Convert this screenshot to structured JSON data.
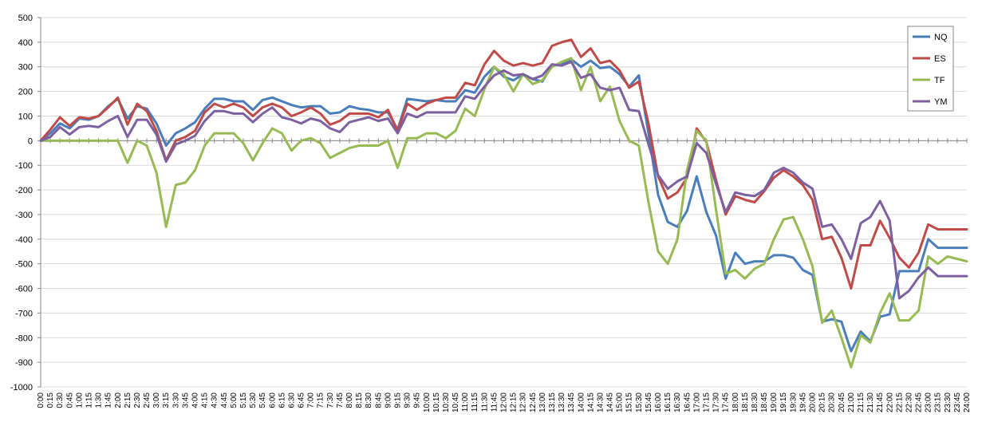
{
  "chart_data": {
    "type": "line",
    "title": "",
    "xlabel": "",
    "ylabel": "",
    "ylim": [
      -1000,
      500
    ],
    "yticks": [
      500,
      400,
      300,
      200,
      100,
      0,
      -100,
      -200,
      -300,
      -400,
      -500,
      -600,
      -700,
      -800,
      -900,
      -1000
    ],
    "grid": "horizontal",
    "legend_position": "top-right",
    "categories": [
      "0:00",
      "0:15",
      "0:30",
      "0:45",
      "1:00",
      "1:15",
      "1:30",
      "1:45",
      "2:00",
      "2:15",
      "2:30",
      "2:45",
      "3:00",
      "3:15",
      "3:30",
      "3:45",
      "4:00",
      "4:15",
      "4:30",
      "4:45",
      "5:00",
      "5:15",
      "5:30",
      "5:45",
      "6:00",
      "6:15",
      "6:30",
      "6:45",
      "7:00",
      "7:15",
      "7:30",
      "7:45",
      "8:00",
      "8:15",
      "8:30",
      "8:45",
      "9:00",
      "9:15",
      "9:30",
      "9:45",
      "10:00",
      "10:15",
      "10:30",
      "10:45",
      "11:00",
      "11:15",
      "11:30",
      "11:45",
      "12:00",
      "12:15",
      "12:30",
      "12:45",
      "13:00",
      "13:15",
      "13:30",
      "13:45",
      "14:00",
      "14:15",
      "14:30",
      "14:45",
      "15:00",
      "15:15",
      "15:30",
      "15:45",
      "16:00",
      "16:15",
      "16:30",
      "16:45",
      "17:00",
      "17:15",
      "17:30",
      "17:45",
      "18:00",
      "18:15",
      "18:30",
      "18:45",
      "19:00",
      "19:15",
      "19:30",
      "19:45",
      "20:00",
      "20:15",
      "20:30",
      "20:45",
      "21:00",
      "21:15",
      "21:30",
      "21:45",
      "22:00",
      "22:15",
      "22:30",
      "22:45",
      "23:00",
      "23:15",
      "23:30",
      "23:45",
      "24:00"
    ],
    "series": [
      {
        "name": "NQ",
        "color": "#4a7ebb",
        "values": [
          0,
          30,
          70,
          50,
          90,
          85,
          100,
          140,
          170,
          90,
          140,
          130,
          70,
          -20,
          30,
          50,
          75,
          130,
          170,
          170,
          160,
          160,
          125,
          165,
          175,
          160,
          145,
          135,
          140,
          140,
          110,
          115,
          140,
          130,
          125,
          115,
          115,
          45,
          170,
          165,
          160,
          165,
          160,
          160,
          205,
          195,
          260,
          300,
          260,
          245,
          270,
          250,
          240,
          305,
          310,
          330,
          300,
          325,
          295,
          300,
          270,
          220,
          265,
          30,
          -220,
          -330,
          -350,
          -285,
          -145,
          -290,
          -385,
          -560,
          -455,
          -500,
          -490,
          -490,
          -465,
          -465,
          -475,
          -525,
          -545,
          -735,
          -725,
          -735,
          -855,
          -775,
          -815,
          -715,
          -705,
          -530,
          -530,
          -530,
          -400,
          -435,
          -435,
          -435,
          -435
        ]
      },
      {
        "name": "ES",
        "color": "#be4b48",
        "values": [
          0,
          45,
          95,
          60,
          95,
          90,
          100,
          135,
          175,
          65,
          150,
          120,
          40,
          -80,
          0,
          15,
          40,
          115,
          150,
          135,
          150,
          135,
          100,
          135,
          150,
          135,
          100,
          115,
          135,
          110,
          65,
          80,
          110,
          110,
          110,
          95,
          125,
          40,
          150,
          125,
          150,
          165,
          175,
          175,
          235,
          225,
          310,
          365,
          325,
          305,
          315,
          305,
          315,
          385,
          400,
          410,
          340,
          375,
          315,
          325,
          285,
          215,
          240,
          70,
          -145,
          -235,
          -210,
          -150,
          50,
          -5,
          -160,
          -300,
          -225,
          -240,
          -250,
          -205,
          -150,
          -120,
          -145,
          -180,
          -240,
          -400,
          -390,
          -475,
          -600,
          -425,
          -425,
          -325,
          -395,
          -475,
          -515,
          -455,
          -340,
          -360,
          -360,
          -360,
          -360
        ]
      },
      {
        "name": "TF",
        "color": "#98b954",
        "values": [
          0,
          0,
          0,
          0,
          0,
          0,
          0,
          0,
          0,
          -90,
          0,
          -20,
          -130,
          -350,
          -180,
          -170,
          -120,
          -20,
          30,
          30,
          30,
          -10,
          -80,
          -10,
          50,
          30,
          -40,
          0,
          10,
          -10,
          -70,
          -50,
          -30,
          -20,
          -20,
          -20,
          0,
          -110,
          10,
          10,
          30,
          30,
          10,
          40,
          130,
          100,
          210,
          300,
          270,
          200,
          270,
          230,
          245,
          300,
          320,
          335,
          205,
          300,
          160,
          220,
          80,
          0,
          -20,
          -250,
          -450,
          -500,
          -400,
          -120,
          40,
          0,
          -280,
          -540,
          -525,
          -560,
          -520,
          -500,
          -400,
          -320,
          -310,
          -400,
          -510,
          -740,
          -690,
          -800,
          -920,
          -790,
          -820,
          -700,
          -620,
          -730,
          -730,
          -690,
          -470,
          -500,
          -470,
          -480,
          -490
        ]
      },
      {
        "name": "YM",
        "color": "#7d60a0",
        "values": [
          0,
          15,
          55,
          25,
          55,
          60,
          55,
          80,
          100,
          15,
          85,
          85,
          25,
          -85,
          -15,
          0,
          20,
          80,
          120,
          120,
          110,
          110,
          75,
          110,
          135,
          95,
          85,
          70,
          90,
          80,
          50,
          35,
          75,
          85,
          95,
          80,
          90,
          30,
          110,
          95,
          115,
          115,
          115,
          115,
          180,
          170,
          220,
          265,
          285,
          265,
          270,
          250,
          265,
          310,
          305,
          320,
          255,
          270,
          215,
          205,
          215,
          125,
          120,
          -15,
          -140,
          -195,
          -165,
          -145,
          -10,
          -50,
          -175,
          -290,
          -210,
          -220,
          -225,
          -200,
          -130,
          -110,
          -130,
          -170,
          -195,
          -350,
          -340,
          -400,
          -480,
          -335,
          -310,
          -245,
          -325,
          -640,
          -610,
          -555,
          -515,
          -550,
          -550,
          -550,
          -550
        ]
      }
    ]
  }
}
